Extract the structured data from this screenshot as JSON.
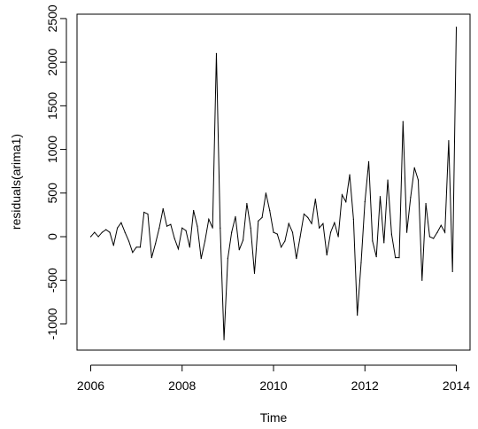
{
  "chart_data": {
    "type": "line",
    "title": "",
    "xlabel": "Time",
    "ylabel": "residuals(arima1)",
    "xlim": [
      2005.7,
      2014.3
    ],
    "ylim": [
      -1300,
      2550
    ],
    "x_ticks": [
      2006,
      2008,
      2010,
      2012,
      2014
    ],
    "x_tick_labels": [
      "2006",
      "2008",
      "2010",
      "2012",
      "2014"
    ],
    "y_ticks": [
      -1000,
      -500,
      0,
      500,
      1000,
      1500,
      2000,
      2500
    ],
    "y_tick_labels": [
      "-1000",
      "-500",
      "0",
      "500",
      "1000",
      "1500",
      "2000",
      "2500"
    ],
    "grid": false,
    "legend": "none",
    "frequency": 12,
    "start": 2006.0,
    "series": [
      {
        "color": "#000000",
        "values": [
          0,
          50,
          0,
          50,
          80,
          50,
          -100,
          100,
          160,
          50,
          -50,
          -180,
          -120,
          -120,
          280,
          260,
          -240,
          -80,
          100,
          320,
          120,
          140,
          -20,
          -140,
          100,
          70,
          -120,
          300,
          120,
          -250,
          -50,
          200,
          100,
          2100,
          100,
          -1180,
          -250,
          50,
          230,
          -150,
          -40,
          380,
          100,
          -420,
          180,
          220,
          500,
          300,
          50,
          30,
          -120,
          -50,
          150,
          50,
          -250,
          0,
          260,
          220,
          150,
          430,
          100,
          150,
          -210,
          50,
          160,
          0,
          480,
          400,
          710,
          200,
          -900,
          -300,
          400,
          860,
          -50,
          -230,
          460,
          -70,
          650,
          30,
          -240,
          -240,
          1320,
          50,
          450,
          790,
          650,
          -500,
          380,
          0,
          -20,
          50,
          130,
          50,
          1100,
          -400,
          2400
        ]
      }
    ]
  }
}
